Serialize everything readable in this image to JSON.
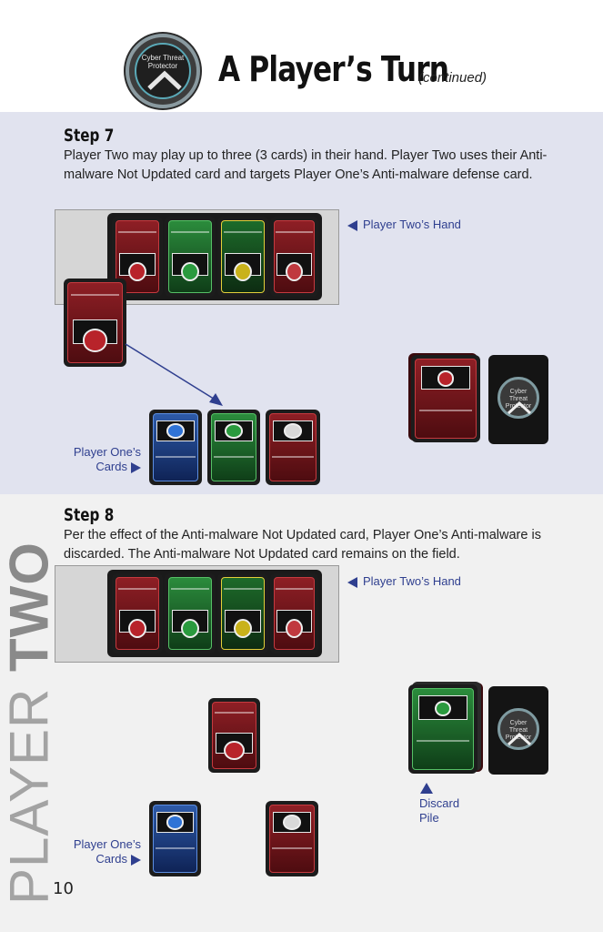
{
  "header": {
    "logo_text": "Cyber Threat Protector",
    "title": "A Player’s Turn",
    "subtitle": "(continued)"
  },
  "step7": {
    "heading": "Step 7",
    "body": "Player Two may play up to three (3 cards) in their hand. Player Two uses their Anti-malware Not Updated card and targets Player One’s Anti-malware defense card.",
    "hand_label": "Player Two’s Hand",
    "p1_label_line1": "Player One’s",
    "p1_label_line2": "Cards",
    "deck_back_text": "Cyber Threat Protector"
  },
  "step8": {
    "heading": "Step 8",
    "body": "Per the effect of the Anti-malware Not Updated card, Player One’s Anti-malware is discarded. The Anti-malware Not Updated card remains on the field.",
    "hand_label": "Player Two’s Hand",
    "p1_label_line1": "Player One’s",
    "p1_label_line2": "Cards",
    "discard_line1": "Discard",
    "discard_line2": "Pile",
    "deck_back_text": "Cyber Threat Protector"
  },
  "side": {
    "word1": "PLAYER",
    "word2": "TWO"
  },
  "page_number": "10",
  "colors": {
    "section7_bg": "#e1e3ef",
    "section8_bg": "#f1f1f1",
    "label_blue": "#2f3f8f",
    "card_red": "#8e1f25",
    "card_green": "#2b8c3c",
    "card_blue": "#2d5aa8",
    "card_yellow_border": "#e4d03a"
  }
}
